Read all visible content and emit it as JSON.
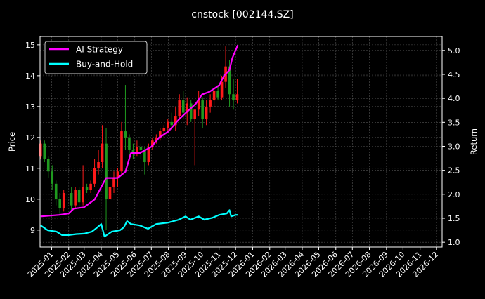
{
  "chart_data": {
    "type": "candlestick+line",
    "title": "cnstock [002144.SZ]",
    "ylabel_left": "Price",
    "ylabel_right": "Return",
    "xlim": [
      "2024-12-11",
      "2026-12-11"
    ],
    "ylim_left": [
      8.45,
      15.27
    ],
    "ylim_right": [
      0.9,
      5.29
    ],
    "grid": true,
    "legend_placement": "top-left",
    "x_ticks": [
      "2025-01",
      "2025-02",
      "2025-03",
      "2025-04",
      "2025-05",
      "2025-06",
      "2025-07",
      "2025-08",
      "2025-09",
      "2025-10",
      "2025-11",
      "2025-12",
      "2026-01",
      "2026-02",
      "2026-03",
      "2026-04",
      "2026-05",
      "2026-06",
      "2026-07",
      "2026-08",
      "2026-09",
      "2026-10",
      "2026-11",
      "2026-12"
    ],
    "y_ticks_left": [
      9,
      10,
      11,
      12,
      13,
      14,
      15
    ],
    "y_ticks_right": [
      "1.0",
      "1.5",
      "2.0",
      "2.5",
      "3.0",
      "3.5",
      "4.0",
      "4.5",
      "5.0"
    ],
    "colors": {
      "up": "#ff1a1a",
      "down": "#1f9a1f",
      "ai": "#ff00ff",
      "bh": "#00ffff",
      "background": "#000000",
      "grid": "#555555"
    },
    "candles_columns": [
      "date",
      "open",
      "high",
      "low",
      "close"
    ],
    "candles": [
      [
        "2024-12-12",
        11.4,
        11.9,
        11.3,
        11.8
      ],
      [
        "2024-12-19",
        11.8,
        11.9,
        11.2,
        11.3
      ],
      [
        "2024-12-26",
        11.3,
        11.4,
        10.7,
        10.9
      ],
      [
        "2025-01-02",
        10.9,
        11.1,
        10.3,
        10.5
      ],
      [
        "2025-01-09",
        10.5,
        10.6,
        9.8,
        10.0
      ],
      [
        "2025-01-16",
        10.0,
        10.2,
        9.5,
        9.7
      ],
      [
        "2025-01-23",
        9.7,
        10.3,
        9.6,
        10.2
      ],
      [
        "2025-02-06",
        10.2,
        10.4,
        9.6,
        9.8
      ],
      [
        "2025-02-13",
        9.8,
        10.4,
        9.7,
        10.3
      ],
      [
        "2025-02-20",
        10.3,
        10.4,
        9.7,
        9.9
      ],
      [
        "2025-02-27",
        9.9,
        11.1,
        9.8,
        10.4
      ],
      [
        "2025-03-06",
        10.4,
        10.5,
        10.2,
        10.3
      ],
      [
        "2025-03-13",
        10.3,
        10.6,
        10.2,
        10.5
      ],
      [
        "2025-03-20",
        10.5,
        11.3,
        10.4,
        11.0
      ],
      [
        "2025-03-27",
        11.0,
        11.6,
        10.8,
        11.2
      ],
      [
        "2025-04-03",
        11.2,
        12.4,
        11.0,
        11.8
      ],
      [
        "2025-04-10",
        11.8,
        12.3,
        9.0,
        10.0
      ],
      [
        "2025-04-17",
        10.0,
        10.8,
        9.7,
        10.4
      ],
      [
        "2025-04-24",
        10.4,
        10.9,
        10.2,
        10.7
      ],
      [
        "2025-05-01",
        10.7,
        11.0,
        10.4,
        10.9
      ],
      [
        "2025-05-08",
        10.9,
        12.5,
        10.8,
        12.2
      ],
      [
        "2025-05-15",
        12.2,
        13.7,
        11.6,
        12.0
      ],
      [
        "2025-05-22",
        12.0,
        12.1,
        11.4,
        11.6
      ],
      [
        "2025-05-29",
        11.6,
        11.8,
        11.3,
        11.5
      ],
      [
        "2025-06-05",
        11.5,
        11.9,
        11.4,
        11.7
      ],
      [
        "2025-06-12",
        11.7,
        11.8,
        11.3,
        11.6
      ],
      [
        "2025-06-19",
        11.6,
        11.7,
        10.8,
        11.2
      ],
      [
        "2025-06-26",
        11.2,
        11.8,
        11.1,
        11.7
      ],
      [
        "2025-07-03",
        11.7,
        12.0,
        11.6,
        11.9
      ],
      [
        "2025-07-10",
        11.9,
        12.1,
        11.8,
        12.0
      ],
      [
        "2025-07-17",
        12.0,
        12.3,
        11.9,
        12.2
      ],
      [
        "2025-07-24",
        12.2,
        12.4,
        12.0,
        12.3
      ],
      [
        "2025-07-31",
        12.3,
        12.6,
        12.2,
        12.5
      ],
      [
        "2025-08-07",
        12.5,
        12.8,
        12.3,
        12.4
      ],
      [
        "2025-08-14",
        12.4,
        13.0,
        12.2,
        12.7
      ],
      [
        "2025-08-21",
        12.7,
        13.4,
        12.6,
        13.2
      ],
      [
        "2025-08-28",
        13.2,
        13.5,
        12.6,
        12.8
      ],
      [
        "2025-09-04",
        12.8,
        13.3,
        12.4,
        13.1
      ],
      [
        "2025-09-11",
        13.1,
        13.2,
        12.5,
        12.6
      ],
      [
        "2025-09-18",
        12.6,
        12.9,
        11.1,
        12.9
      ],
      [
        "2025-09-25",
        12.9,
        13.5,
        12.7,
        13.2
      ],
      [
        "2025-10-02",
        13.2,
        13.3,
        12.3,
        12.6
      ],
      [
        "2025-10-09",
        12.6,
        13.2,
        12.4,
        13.0
      ],
      [
        "2025-10-16",
        13.0,
        13.4,
        12.8,
        13.2
      ],
      [
        "2025-10-23",
        13.2,
        13.6,
        13.0,
        13.5
      ],
      [
        "2025-10-30",
        13.5,
        13.7,
        13.2,
        13.3
      ],
      [
        "2025-11-06",
        13.3,
        14.0,
        13.2,
        13.8
      ],
      [
        "2025-11-13",
        13.8,
        14.95,
        13.6,
        14.3
      ],
      [
        "2025-11-20",
        14.3,
        14.5,
        13.0,
        13.4
      ],
      [
        "2025-11-27",
        13.4,
        13.9,
        12.9,
        13.2
      ],
      [
        "2025-12-04",
        13.2,
        13.9,
        13.1,
        13.4
      ]
    ],
    "series": [
      {
        "name": "AI Strategy",
        "axis": "right",
        "x": [
          "2024-12-12",
          "2025-01-15",
          "2025-02-01",
          "2025-02-10",
          "2025-03-01",
          "2025-03-20",
          "2025-04-01",
          "2025-04-10",
          "2025-05-01",
          "2025-05-15",
          "2025-05-25",
          "2025-06-10",
          "2025-07-01",
          "2025-07-15",
          "2025-08-01",
          "2025-08-20",
          "2025-09-01",
          "2025-09-20",
          "2025-10-01",
          "2025-10-15",
          "2025-11-01",
          "2025-11-10",
          "2025-11-20",
          "2025-11-25",
          "2025-12-05"
        ],
        "y": [
          1.54,
          1.57,
          1.6,
          1.7,
          1.73,
          1.89,
          2.15,
          2.34,
          2.34,
          2.47,
          2.86,
          2.86,
          2.99,
          3.18,
          3.31,
          3.56,
          3.69,
          3.89,
          4.08,
          4.14,
          4.27,
          4.47,
          4.59,
          4.84,
          5.11
        ]
      },
      {
        "name": "Buy-and-Hold",
        "axis": "right",
        "x": [
          "2024-12-12",
          "2024-12-25",
          "2025-01-10",
          "2025-01-20",
          "2025-02-01",
          "2025-02-15",
          "2025-03-01",
          "2025-03-15",
          "2025-03-25",
          "2025-04-01",
          "2025-04-07",
          "2025-04-20",
          "2025-05-05",
          "2025-05-12",
          "2025-05-18",
          "2025-05-25",
          "2025-06-10",
          "2025-06-25",
          "2025-07-10",
          "2025-08-01",
          "2025-08-20",
          "2025-09-01",
          "2025-09-10",
          "2025-09-25",
          "2025-10-05",
          "2025-10-20",
          "2025-11-01",
          "2025-11-15",
          "2025-11-20",
          "2025-11-23",
          "2025-12-01",
          "2025-12-05"
        ],
        "y": [
          1.35,
          1.25,
          1.22,
          1.15,
          1.15,
          1.17,
          1.18,
          1.22,
          1.31,
          1.38,
          1.12,
          1.22,
          1.25,
          1.31,
          1.44,
          1.38,
          1.35,
          1.28,
          1.38,
          1.41,
          1.47,
          1.54,
          1.47,
          1.54,
          1.47,
          1.51,
          1.57,
          1.6,
          1.67,
          1.54,
          1.57,
          1.57
        ]
      }
    ]
  }
}
